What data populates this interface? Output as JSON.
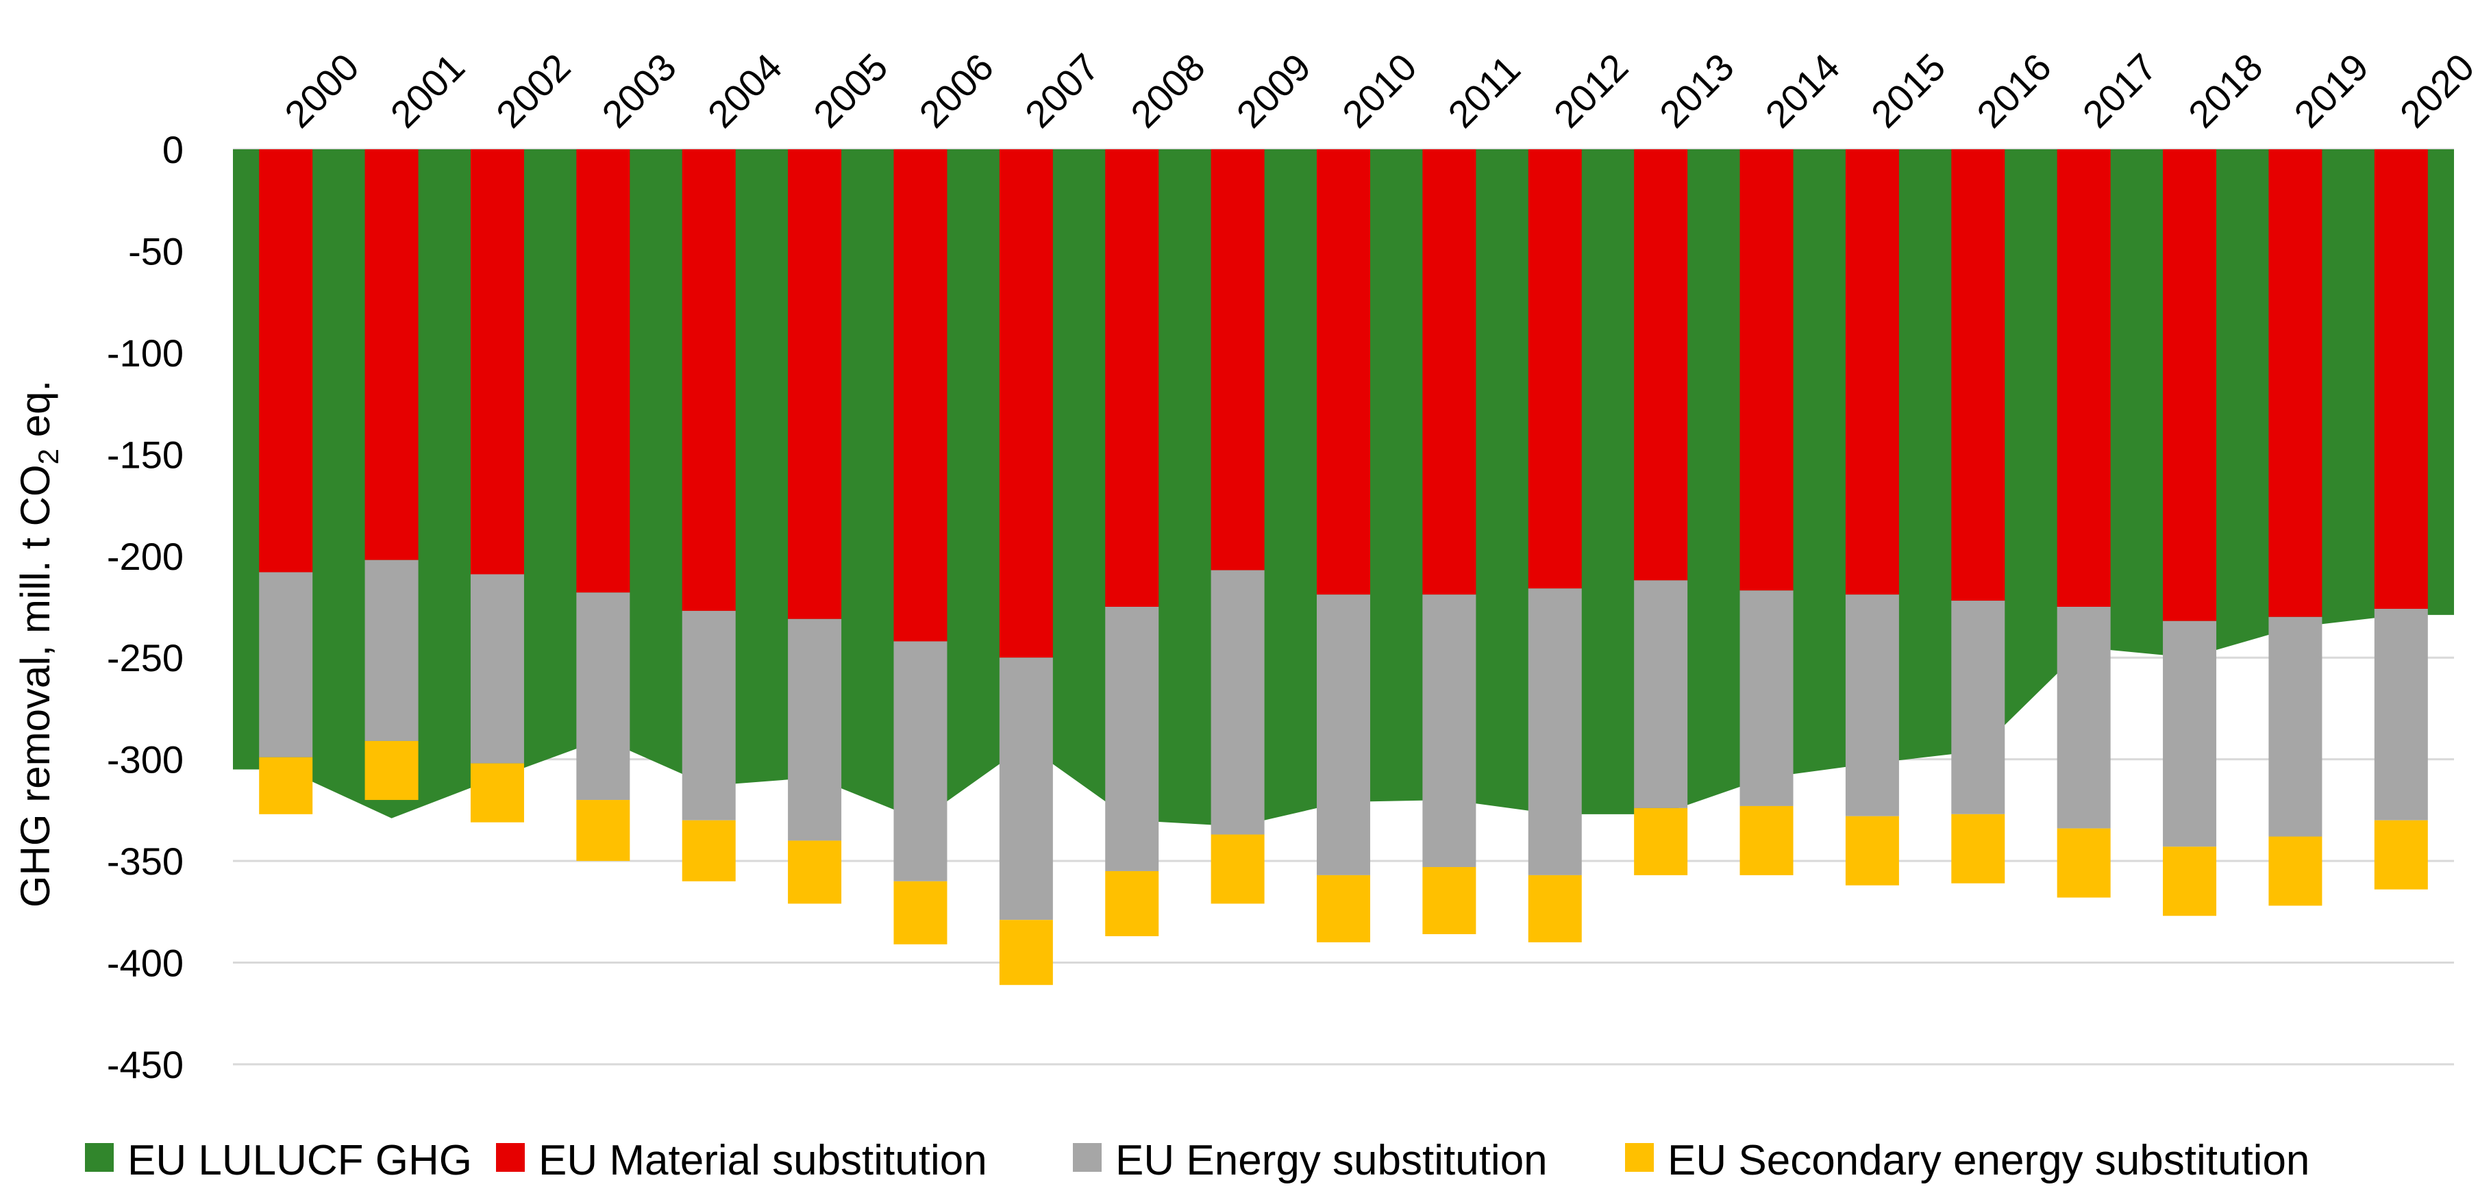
{
  "chart_data": {
    "type": "bar",
    "title": "",
    "xlabel": "",
    "ylabel": {
      "main": "GHG removal, mill. t CO",
      "subscript": "2",
      "suffix": " eq."
    },
    "ylim": [
      -450,
      0
    ],
    "yticks": [
      0,
      -50,
      -100,
      -150,
      -200,
      -250,
      -300,
      -350,
      -400,
      -450
    ],
    "ytick_labels": [
      "0",
      "-50",
      "-100",
      "-150",
      "-200",
      "-250",
      "-300",
      "-350",
      "-400",
      "-450"
    ],
    "grid": true,
    "legend_position": "bottom",
    "categories": [
      "2000",
      "2001",
      "2002",
      "2003",
      "2004",
      "2005",
      "2006",
      "2007",
      "2008",
      "2009",
      "2010",
      "2011",
      "2012",
      "2013",
      "2014",
      "2015",
      "2016",
      "2017",
      "2018",
      "2019",
      "2020"
    ],
    "area_series": {
      "name": "EU LULUCF GHG",
      "type": "area",
      "color": "#31862C",
      "values": [
        -305,
        -329,
        -309,
        -290,
        -313,
        -309,
        -330,
        -293,
        -330,
        -333,
        -321,
        -320,
        -327,
        -327,
        -309,
        -302,
        -296,
        -245,
        -250,
        -235,
        -229
      ]
    },
    "series": [
      {
        "name": "EU Material substitution",
        "color": "#E60000",
        "values": [
          -208,
          -202,
          -209,
          -218,
          -227,
          -231,
          -242,
          -250,
          -225,
          -207,
          -219,
          -219,
          -216,
          -212,
          -217,
          -219,
          -222,
          -225,
          -232,
          -230,
          -226
        ]
      },
      {
        "name": "EU Energy substitution",
        "color": "#A6A6A6",
        "values": [
          -91,
          -89,
          -93,
          -102,
          -103,
          -109,
          -118,
          -129,
          -130,
          -130,
          -138,
          -134,
          -141,
          -112,
          -106,
          -109,
          -105,
          -109,
          -111,
          -108,
          -104
        ]
      },
      {
        "name": "EU Secondary energy substitution",
        "color": "#FFC000",
        "values": [
          -28,
          -29,
          -29,
          -30,
          -30,
          -31,
          -31,
          -32,
          -32,
          -34,
          -33,
          -33,
          -33,
          -33,
          -34,
          -34,
          -34,
          -34,
          -34,
          -34,
          -34
        ]
      }
    ],
    "legend": [
      {
        "label": "EU LULUCF GHG",
        "color": "#31862C"
      },
      {
        "label": "EU Material substitution",
        "color": "#E60000"
      },
      {
        "label": "EU Energy substitution",
        "color": "#A6A6A6"
      },
      {
        "label": "EU Secondary energy substitution",
        "color": "#FFC000"
      }
    ]
  }
}
